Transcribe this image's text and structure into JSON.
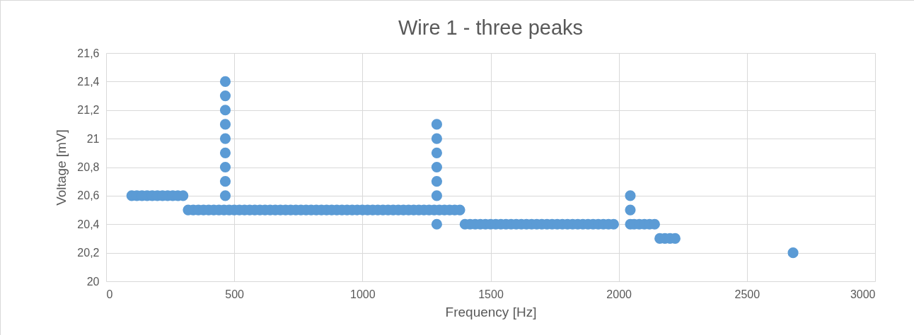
{
  "chart_data": {
    "type": "scatter",
    "title": "Wire 1 - three peaks",
    "xlabel": "Frequency [Hz]",
    "ylabel": "Voltage [mV]",
    "series": [
      {
        "color": "#5b9bd5",
        "x": [
          100,
          120,
          140,
          160,
          180,
          200,
          220,
          240,
          260,
          280,
          300,
          320,
          340,
          360,
          380,
          400,
          420,
          440,
          460,
          480,
          500,
          520,
          540,
          560,
          580,
          600,
          620,
          640,
          660,
          680,
          700,
          720,
          740,
          760,
          780,
          800,
          820,
          840,
          860,
          880,
          900,
          920,
          940,
          960,
          980,
          1000,
          1020,
          1040,
          1060,
          1080,
          1100,
          1120,
          1140,
          1160,
          1180,
          1200,
          1220,
          1240,
          1260,
          1280,
          1300,
          1320,
          1340,
          1360,
          1380,
          465,
          465,
          465,
          465,
          465,
          465,
          465,
          465,
          465,
          1290,
          1290,
          1290,
          1290,
          1290,
          1290,
          1290,
          1400,
          1420,
          1440,
          1460,
          1480,
          1500,
          1520,
          1540,
          1560,
          1580,
          1600,
          1620,
          1640,
          1660,
          1680,
          1700,
          1720,
          1740,
          1760,
          1780,
          1800,
          1820,
          1840,
          1860,
          1880,
          1900,
          1920,
          1940,
          1960,
          1980,
          2045,
          2045,
          2045,
          2060,
          2080,
          2100,
          2120,
          2140,
          2160,
          2180,
          2200,
          2220,
          2680
        ],
        "values": [
          20.6,
          20.6,
          20.6,
          20.6,
          20.6,
          20.6,
          20.6,
          20.6,
          20.6,
          20.6,
          20.6,
          20.5,
          20.5,
          20.5,
          20.5,
          20.5,
          20.5,
          20.5,
          20.5,
          20.5,
          20.5,
          20.5,
          20.5,
          20.5,
          20.5,
          20.5,
          20.5,
          20.5,
          20.5,
          20.5,
          20.5,
          20.5,
          20.5,
          20.5,
          20.5,
          20.5,
          20.5,
          20.5,
          20.5,
          20.5,
          20.5,
          20.5,
          20.5,
          20.5,
          20.5,
          20.5,
          20.5,
          20.5,
          20.5,
          20.5,
          20.5,
          20.5,
          20.5,
          20.5,
          20.5,
          20.5,
          20.5,
          20.5,
          20.5,
          20.5,
          20.5,
          20.5,
          20.5,
          20.5,
          20.5,
          20.6,
          20.7,
          20.8,
          20.9,
          21.0,
          21.1,
          21.2,
          21.3,
          21.4,
          20.4,
          20.6,
          20.7,
          20.8,
          20.9,
          21.0,
          21.1,
          20.4,
          20.4,
          20.4,
          20.4,
          20.4,
          20.4,
          20.4,
          20.4,
          20.4,
          20.4,
          20.4,
          20.4,
          20.4,
          20.4,
          20.4,
          20.4,
          20.4,
          20.4,
          20.4,
          20.4,
          20.4,
          20.4,
          20.4,
          20.4,
          20.4,
          20.4,
          20.4,
          20.4,
          20.4,
          20.4,
          20.4,
          20.5,
          20.6,
          20.4,
          20.4,
          20.4,
          20.4,
          20.4,
          20.3,
          20.3,
          20.3,
          20.3,
          20.2
        ]
      }
    ],
    "xlim": [
      0,
      3000
    ],
    "xticks": [
      0,
      500,
      1000,
      1500,
      2000,
      2500,
      3000
    ],
    "ylim": [
      20,
      21.6
    ],
    "yticks": [
      20,
      {
        "value": 20.2,
        "label": "20,2"
      },
      {
        "value": 20.4,
        "label": "20,4"
      },
      {
        "value": 20.6,
        "label": "20,6"
      },
      {
        "value": 20.8,
        "label": "20,8"
      },
      21,
      {
        "value": 21.2,
        "label": "21,2"
      },
      {
        "value": 21.4,
        "label": "21,4"
      },
      {
        "value": 21.6,
        "label": "21,6"
      }
    ],
    "grid": true,
    "marker": "circle"
  }
}
